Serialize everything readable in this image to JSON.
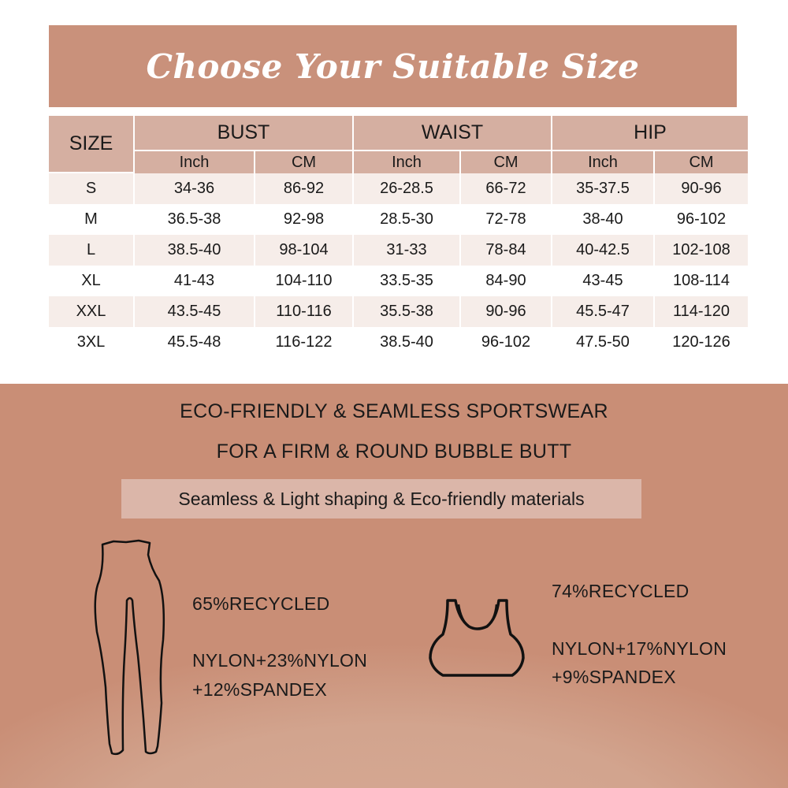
{
  "title": "Choose Your Suitable Size",
  "table": {
    "size_header": "SIZE",
    "groups": [
      "BUST",
      "WAIST",
      "HIP"
    ],
    "units": [
      "Inch",
      "CM",
      "Inch",
      "CM",
      "Inch",
      "CM"
    ],
    "rows": [
      [
        "S",
        "34-36",
        "86-92",
        "26-28.5",
        "66-72",
        "35-37.5",
        "90-96"
      ],
      [
        "M",
        "36.5-38",
        "92-98",
        "28.5-30",
        "72-78",
        "38-40",
        "96-102"
      ],
      [
        "L",
        "38.5-40",
        "98-104",
        "31-33",
        "78-84",
        "40-42.5",
        "102-108"
      ],
      [
        "XL",
        "41-43",
        "104-110",
        "33.5-35",
        "84-90",
        "43-45",
        "108-114"
      ],
      [
        "XXL",
        "43.5-45",
        "110-116",
        "35.5-38",
        "90-96",
        "45.5-47",
        "114-120"
      ],
      [
        "3XL",
        "45.5-48",
        "116-122",
        "38.5-40",
        "96-102",
        "47.5-50",
        "120-126"
      ]
    ]
  },
  "promo": {
    "line1": "ECO-FRIENDLY & SEAMLESS SPORTSWEAR",
    "line2": "FOR A FIRM & ROUND BUBBLE BUTT",
    "features": "Seamless & Light shaping & Eco-friendly materials"
  },
  "leggings": {
    "icon": "leggings-icon",
    "line1": "65%RECYCLED",
    "line2": "NYLON+23%NYLON",
    "line3": "+12%SPANDEX"
  },
  "bra": {
    "icon": "sports-bra-icon",
    "line1": "74%RECYCLED",
    "line2": "NYLON+17%NYLON",
    "line3": "+9%SPANDEX"
  },
  "colors": {
    "title_band": "#c9917b",
    "header": "#d5afa1",
    "stripe": "#f6ede9",
    "bottom": "#c98e76"
  }
}
